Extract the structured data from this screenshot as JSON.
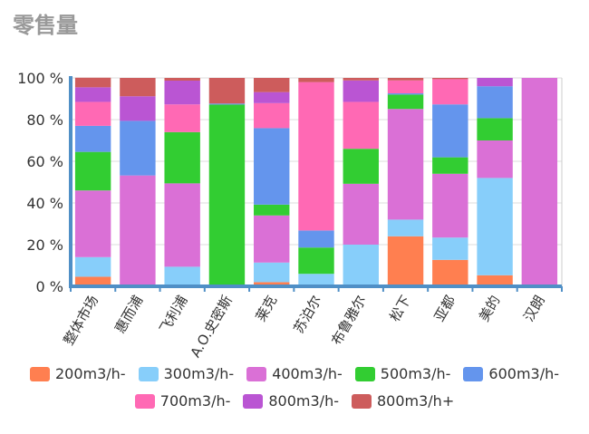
{
  "chart_data": {
    "type": "bar",
    "stacked": true,
    "title": "零售量",
    "xlabel": "",
    "ylabel": "",
    "ylim": [
      0,
      100
    ],
    "yticks": [
      "0 %",
      "20 %",
      "40 %",
      "60 %",
      "80 %",
      "100 %"
    ],
    "grid": true,
    "legend_position": "bottom",
    "categories": [
      "整体市场",
      "惠而浦",
      "飞利浦",
      "A.O.史密斯",
      "莱克",
      "苏泊尔",
      "布鲁雅尔",
      "松下",
      "亚都",
      "美的",
      "汉朗"
    ],
    "series": [
      {
        "name": "200m3/h-",
        "color": "#ff7f50",
        "values": [
          4.6,
          0.7,
          0.3,
          0,
          2,
          0.7,
          0.3,
          24,
          12.7,
          5.3,
          0
        ]
      },
      {
        "name": "300m3/h-",
        "color": "#87cefa",
        "values": [
          9.4,
          0,
          9.1,
          0,
          9.4,
          5.3,
          19.7,
          8,
          10.7,
          46.7,
          0
        ]
      },
      {
        "name": "400m3/h-",
        "color": "#da70d6",
        "values": [
          32,
          52.5,
          40,
          0.3,
          22.6,
          0,
          29.2,
          53.1,
          30.6,
          18,
          100
        ]
      },
      {
        "name": "500m3/h-",
        "color": "#32cd32",
        "values": [
          18.5,
          0,
          24.6,
          86.9,
          5.2,
          12.6,
          16.8,
          6.9,
          7.9,
          10.7,
          0
        ]
      },
      {
        "name": "600m3/h-",
        "color": "#6495ed",
        "values": [
          12.5,
          26.2,
          0,
          0.5,
          36.7,
          8.2,
          0,
          0.6,
          25.4,
          15.3,
          0
        ]
      },
      {
        "name": "700m3/h-",
        "color": "#ff69b4",
        "values": [
          11.5,
          0,
          13.3,
          0,
          12,
          71.2,
          22.5,
          6.2,
          12.1,
          0,
          0
        ]
      },
      {
        "name": "800m3/h-",
        "color": "#ba55d3",
        "values": [
          7,
          11.8,
          11.4,
          0,
          5.3,
          0,
          10.3,
          0,
          0,
          4,
          0
        ]
      },
      {
        "name": "800m3/h+",
        "color": "#cd5c5c",
        "values": [
          4.6,
          8.8,
          1.3,
          12.3,
          6.8,
          2,
          1.2,
          1.2,
          0.6,
          0,
          0
        ]
      }
    ]
  }
}
